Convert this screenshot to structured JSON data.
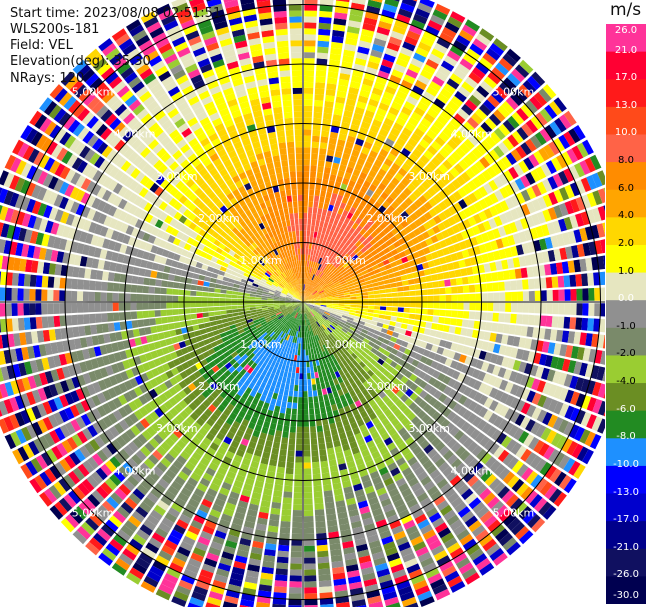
{
  "header": {
    "start_time": "Start time: 2023/08/08 02:51:51",
    "instrument": "WLS200s-181",
    "field": "Field: VEL",
    "elevation": "Elevation(deg): 35.30",
    "nrays": "NRays: 120"
  },
  "colorbar": {
    "unit": "m/s",
    "labels": [
      "26.0",
      "21.0",
      "17.0",
      "13.0",
      "10.0",
      "8.0",
      "6.0",
      "4.0",
      "2.0",
      "1.0",
      "0.0",
      "-1.0",
      "-2.0",
      "-4.0",
      "-6.0",
      "-8.0",
      "-10.0",
      "-13.0",
      "-17.0",
      "-21.0",
      "-26.0",
      "-30.0"
    ],
    "colors": [
      "#ff3399",
      "#ff0033",
      "#ff1a1a",
      "#ff4a1a",
      "#ff6347",
      "#ff8c00",
      "#ffa500",
      "#ffd700",
      "#ffff00",
      "#e6e6c0",
      "#909090",
      "#7a8a6a",
      "#9acd32",
      "#6b8e23",
      "#228b22",
      "#1e90ff",
      "#0000ff",
      "#0000cd",
      "#00008b",
      "#101060",
      "#000050"
    ]
  },
  "chart_data": {
    "type": "heatmap",
    "projection": "polar (PPI)",
    "field": "VEL",
    "units": "m/s",
    "elevation_deg": 35.3,
    "nrays": 120,
    "range_rings_km": [
      1.0,
      2.0,
      3.0,
      4.0,
      5.0
    ],
    "range_ring_labels": [
      "1.00km",
      "2.00km",
      "3.00km",
      "4.00km",
      "5.00km"
    ],
    "max_range_km": 5.5,
    "color_scale": {
      "min": -30.0,
      "max": 26.0,
      "boundaries": [
        -30.0,
        -26.0,
        -21.0,
        -17.0,
        -13.0,
        -10.0,
        -8.0,
        -6.0,
        -4.0,
        -2.0,
        -1.0,
        0.0,
        1.0,
        2.0,
        4.0,
        6.0,
        8.0,
        10.0,
        13.0,
        17.0,
        21.0,
        26.0
      ]
    },
    "velocity_pattern": {
      "approaching_sector_azimuth_deg": 200,
      "receding_sector_azimuth_deg": 20,
      "peak_receding_ms": 8.0,
      "peak_approaching_ms": -8.0,
      "noise_beyond_km": 4.0
    }
  }
}
